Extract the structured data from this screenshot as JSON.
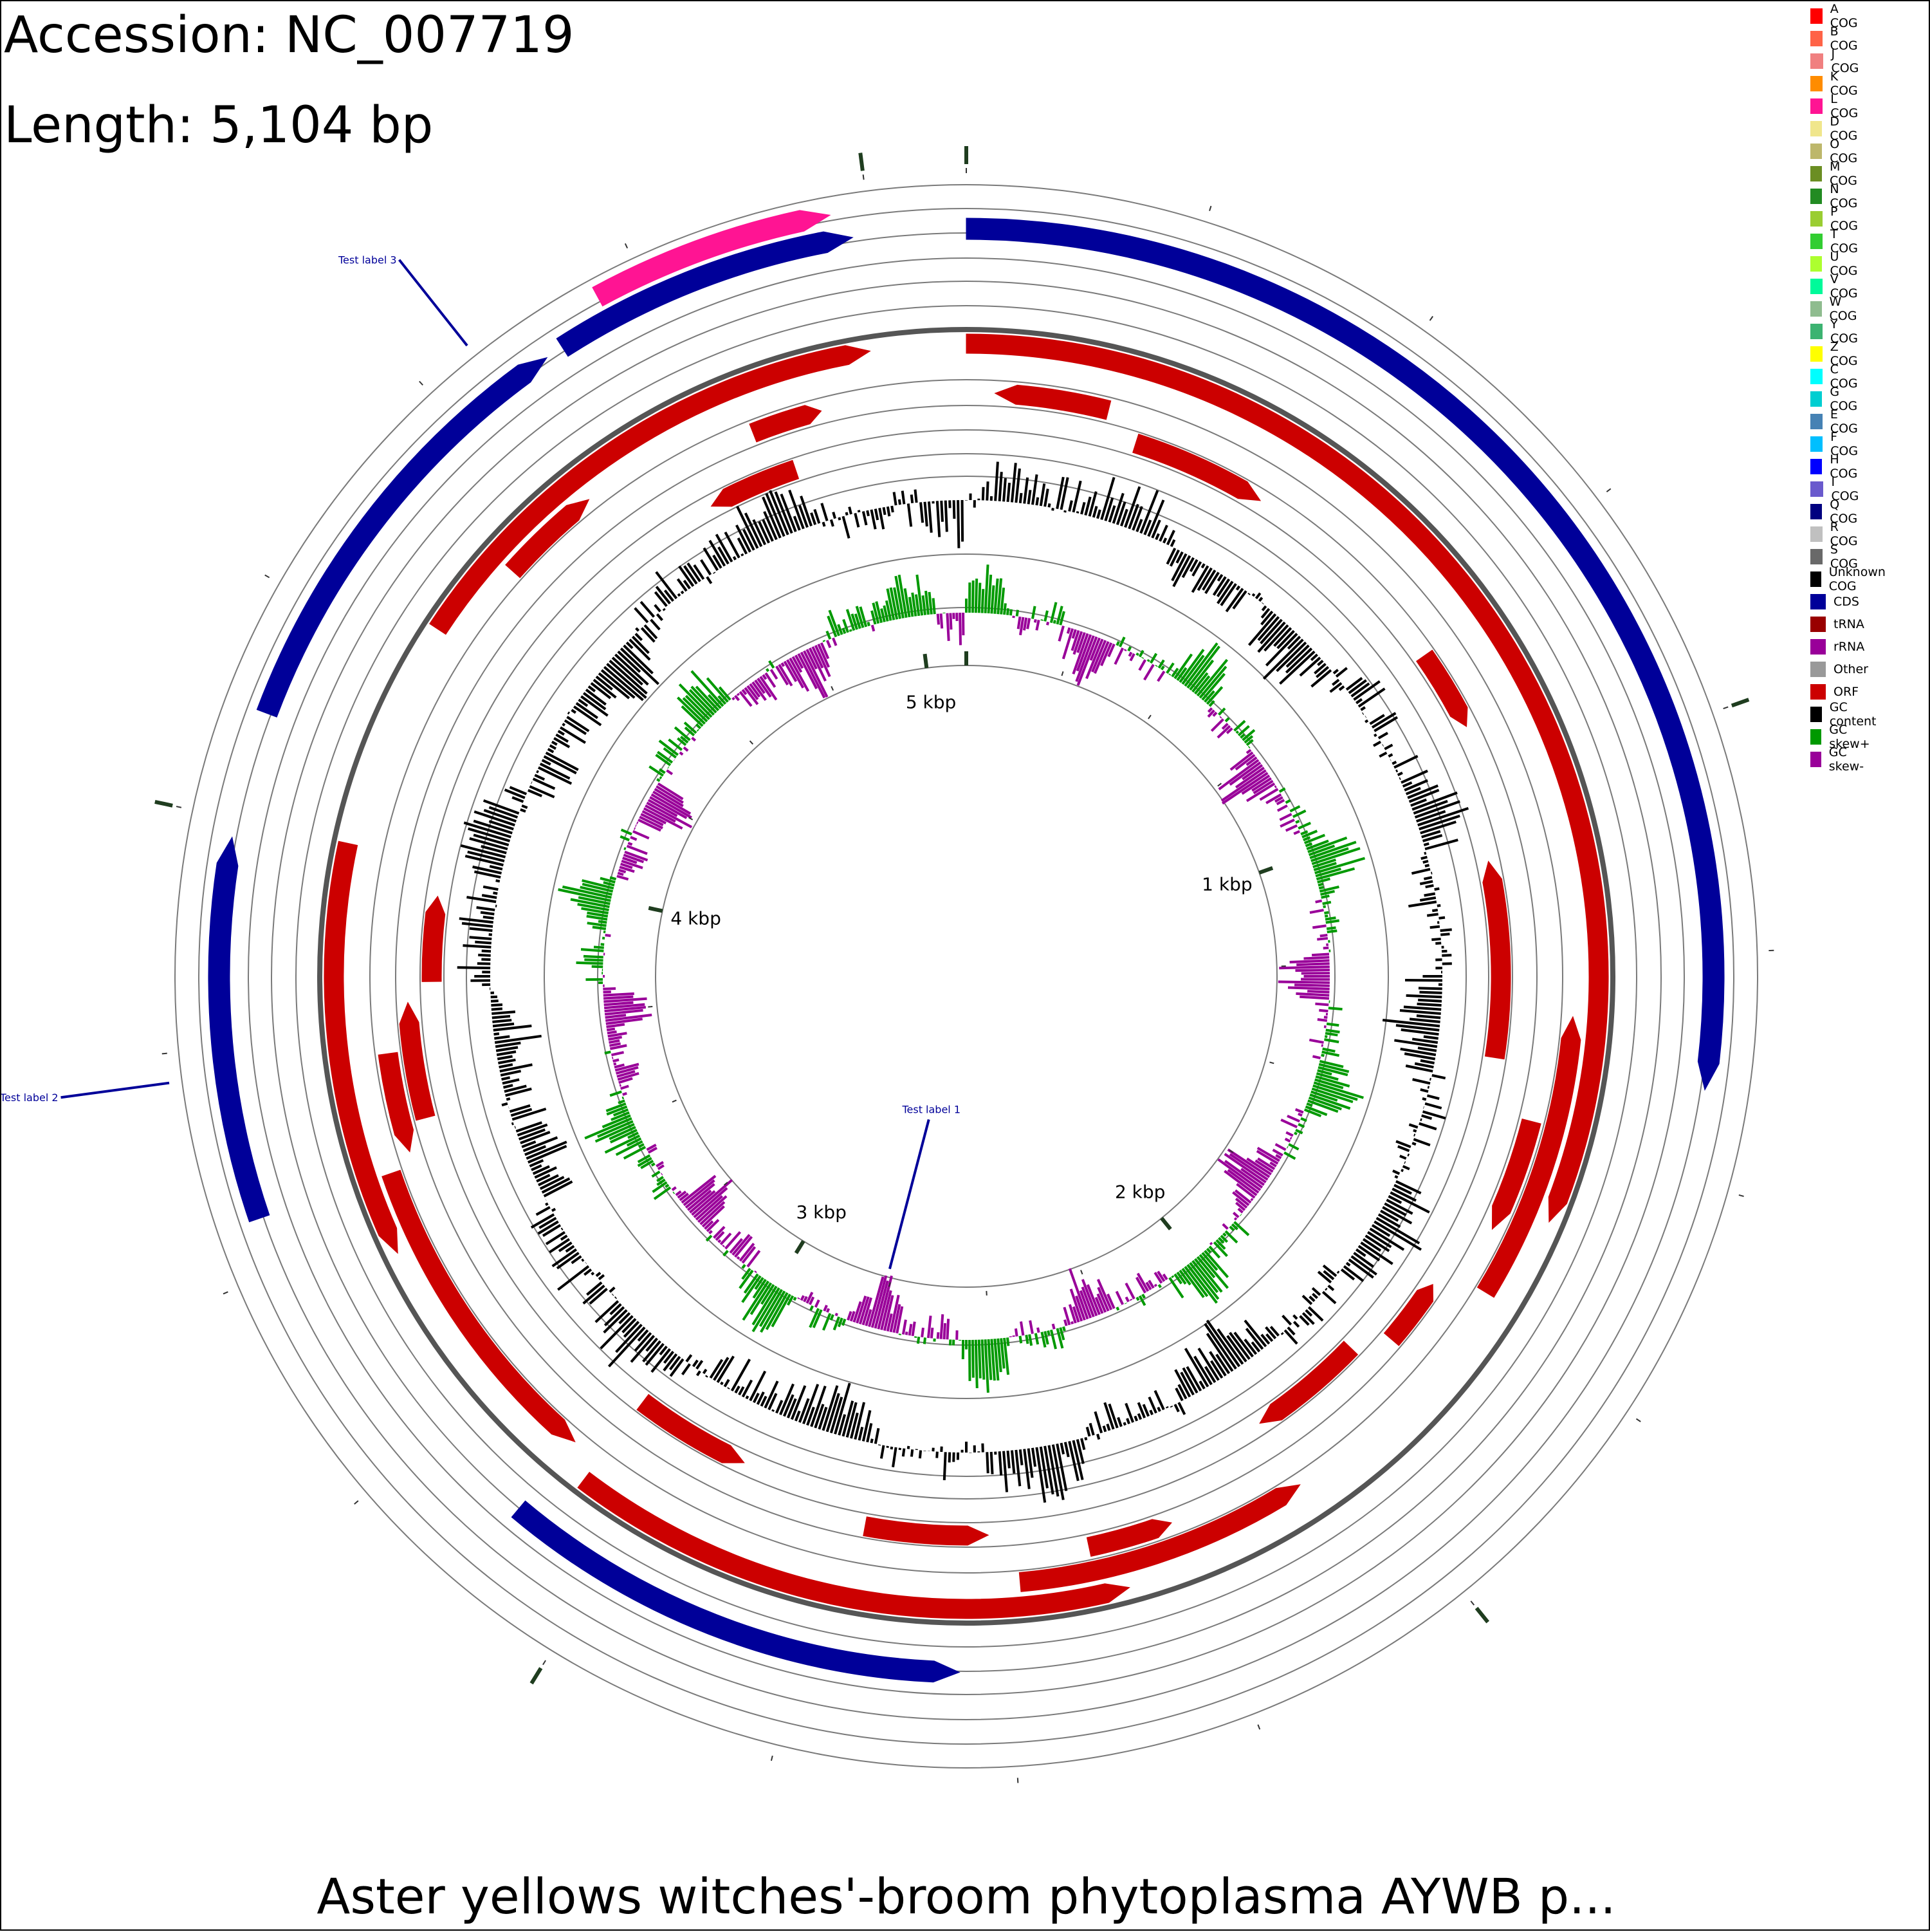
{
  "header": {
    "accession": "Accession: NC_007719",
    "length": "Length: 5,104 bp"
  },
  "footer": {
    "title": "Aster yellows witches'-broom phytoplasma AYWB p..."
  },
  "legend": [
    {
      "label": "A COG",
      "color": "#ff0000"
    },
    {
      "label": "B COG",
      "color": "#ff6347"
    },
    {
      "label": "J COG",
      "color": "#f08080"
    },
    {
      "label": "K COG",
      "color": "#ff8c00"
    },
    {
      "label": "L COG",
      "color": "#ff1493"
    },
    {
      "label": "D COG",
      "color": "#f0e68c"
    },
    {
      "label": "O COG",
      "color": "#bdb76b"
    },
    {
      "label": "M COG",
      "color": "#6b8e23"
    },
    {
      "label": "N COG",
      "color": "#228b22"
    },
    {
      "label": "P COG",
      "color": "#9acd32"
    },
    {
      "label": "T COG",
      "color": "#32cd32"
    },
    {
      "label": "U COG",
      "color": "#adff2f"
    },
    {
      "label": "V COG",
      "color": "#00fa9a"
    },
    {
      "label": "W COG",
      "color": "#8fbc8f"
    },
    {
      "label": "Y COG",
      "color": "#3cb371"
    },
    {
      "label": "Z COG",
      "color": "#ffff00"
    },
    {
      "label": "C COG",
      "color": "#00ffff"
    },
    {
      "label": "G COG",
      "color": "#00ced1"
    },
    {
      "label": "E COG",
      "color": "#4682b4"
    },
    {
      "label": "F COG",
      "color": "#00bfff"
    },
    {
      "label": "H COG",
      "color": "#0000ff"
    },
    {
      "label": "I COG",
      "color": "#6a5acd"
    },
    {
      "label": "Q COG",
      "color": "#000080"
    },
    {
      "label": "R COG",
      "color": "#c0c0c0"
    },
    {
      "label": "S COG",
      "color": "#696969"
    },
    {
      "label": "Unknown COG",
      "color": "#000000"
    },
    {
      "label": "CDS",
      "color": "#000099"
    },
    {
      "label": "tRNA",
      "color": "#990000"
    },
    {
      "label": "rRNA",
      "color": "#990099"
    },
    {
      "label": "Other",
      "color": "#999999"
    },
    {
      "label": "ORF",
      "color": "#cc0000"
    },
    {
      "label": "GC content",
      "color": "#000000"
    },
    {
      "label": "GC skew+",
      "color": "#009900"
    },
    {
      "label": "GC skew-",
      "color": "#990099"
    }
  ],
  "map": {
    "genome_length": 5104,
    "colors": {
      "cds": "#000099",
      "cog_l": "#ff1493",
      "orf": "#cc0000",
      "gc_content": "#000000",
      "gc_skew_pos": "#009900",
      "gc_skew_neg": "#990099",
      "label_line": "#000099",
      "tick_major": "#1f3d1f",
      "ring": "#555555"
    },
    "ticks": [
      {
        "pos": 1000,
        "label": "1 kbp"
      },
      {
        "pos": 2000,
        "label": "2 kbp"
      },
      {
        "pos": 3000,
        "label": "3 kbp"
      },
      {
        "pos": 4000,
        "label": "4 kbp"
      },
      {
        "pos": 5000,
        "label": "5 kbp"
      }
    ],
    "labels": [
      {
        "text": "Test label 1",
        "pos": 2760
      },
      {
        "text": "Test label 2",
        "pos": 3720
      },
      {
        "text": "Test label 3",
        "pos": 4560
      }
    ],
    "features": [
      {
        "track": "cog",
        "type": "L COG",
        "start": 4700,
        "end": 4960,
        "strand": "+"
      },
      {
        "track": "cds_fwd",
        "start": 0,
        "end": 1400,
        "strand": "+"
      },
      {
        "track": "cds_fwd",
        "start": 3560,
        "end": 3980,
        "strand": "+"
      },
      {
        "track": "cds_fwd",
        "start": 4120,
        "end": 4620,
        "strand": "+"
      },
      {
        "track": "cds_fwd",
        "start": 4640,
        "end": 4980,
        "strand": "+"
      },
      {
        "track": "cds_rev",
        "start": 2560,
        "end": 3120,
        "strand": "-"
      },
      {
        "track": "orf_1",
        "start": 0,
        "end": 1600,
        "strand": "+"
      },
      {
        "track": "orf_1",
        "start": 2340,
        "end": 3080,
        "strand": "-"
      },
      {
        "track": "orf_1",
        "start": 3460,
        "end": 4000,
        "strand": "-"
      },
      {
        "track": "orf_1",
        "start": 4300,
        "end": 4980,
        "strand": "+"
      },
      {
        "track": "orf_2",
        "start": 1330,
        "end": 1720,
        "strand": "-"
      },
      {
        "track": "orf_2",
        "start": 2080,
        "end": 2480,
        "strand": "-"
      },
      {
        "track": "orf_2",
        "start": 3120,
        "end": 3560,
        "strand": "-"
      },
      {
        "track": "orf_2",
        "start": 4420,
        "end": 4560,
        "strand": "+"
      },
      {
        "track": "orf_3",
        "start": 40,
        "end": 200,
        "strand": "-"
      },
      {
        "track": "orf_3",
        "start": 1480,
        "end": 1640,
        "strand": "+"
      },
      {
        "track": "orf_3",
        "start": 2260,
        "end": 2380,
        "strand": "-"
      },
      {
        "track": "orf_3",
        "start": 3580,
        "end": 3720,
        "strand": "-"
      },
      {
        "track": "orf_3",
        "start": 4800,
        "end": 4900,
        "strand": "+"
      },
      {
        "track": "orf_4",
        "start": 250,
        "end": 450,
        "strand": "+"
      },
      {
        "track": "orf_4",
        "start": 780,
        "end": 900,
        "strand": "+"
      },
      {
        "track": "orf_4",
        "start": 1750,
        "end": 1850,
        "strand": "-"
      },
      {
        "track": "orf_4",
        "start": 2520,
        "end": 2700,
        "strand": "-"
      },
      {
        "track": "orf_4",
        "start": 3620,
        "end": 3790,
        "strand": "+"
      },
      {
        "track": "orf_5",
        "start": 1100,
        "end": 1400,
        "strand": "-"
      },
      {
        "track": "orf_5",
        "start": 1900,
        "end": 2080,
        "strand": "+"
      },
      {
        "track": "orf_5",
        "start": 2900,
        "end": 3080,
        "strand": "-"
      },
      {
        "track": "orf_5",
        "start": 3820,
        "end": 3950,
        "strand": "+"
      },
      {
        "track": "orf_5",
        "start": 4700,
        "end": 4840,
        "strand": "-"
      }
    ]
  }
}
